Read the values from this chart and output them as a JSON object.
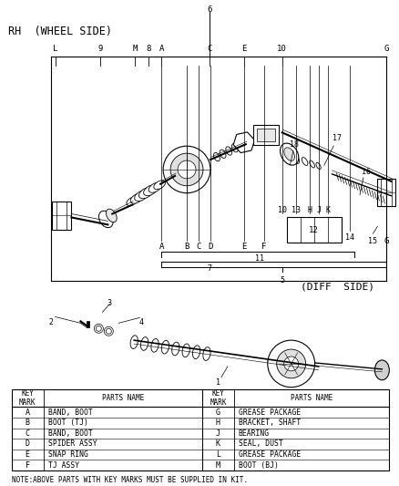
{
  "title": "RH  (WHEEL SIDE)",
  "diff_side_label": "(DIFF  SIDE)",
  "bg_color": "#ffffff",
  "table_left_keys": [
    "A",
    "B",
    "C",
    "D",
    "E",
    "F"
  ],
  "table_left_parts": [
    "BAND, BOOT",
    "BOOT (TJ)",
    "BAND, BOOT",
    "SPIDER ASSY",
    "SNAP RING",
    "TJ ASSY"
  ],
  "table_right_keys": [
    "G",
    "H",
    "J",
    "K",
    "L",
    "M"
  ],
  "table_right_parts": [
    "GREASE PACKAGE",
    "BRACKET, SHAFT",
    "BEARING",
    "SEAL, DUST",
    "GREASE PACKAGE",
    "BOOT (BJ)"
  ],
  "note_text": "NOTE:ABOVE PARTS WITH KEY MARKS MUST BE SUPPLIED IN KIT.",
  "col_header_key": "KEY\nMARK",
  "col_header_parts": "PARTS NAME"
}
